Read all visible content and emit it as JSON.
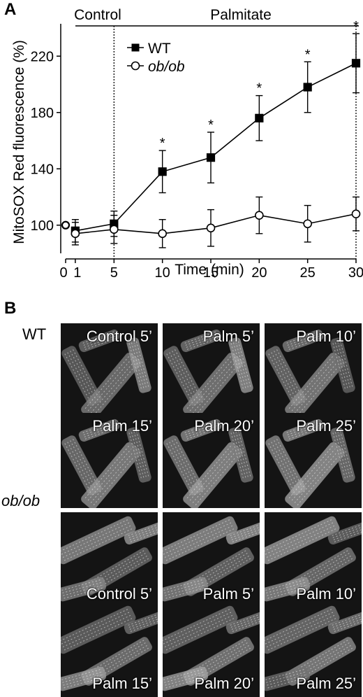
{
  "panel_a": {
    "letter": "A",
    "condition_control": "Control",
    "condition_palmitate": "Palmitate"
  },
  "panel_b": {
    "letter": "B",
    "groups": [
      {
        "label": "WT",
        "tiles": [
          [
            "Control 5’",
            "Palm 5’",
            "Palm 10’"
          ],
          [
            "Palm 15’",
            "Palm 20’",
            "Palm 25’"
          ]
        ]
      },
      {
        "label": "ob/ob",
        "tiles": [
          [
            "Control 5’",
            "Palm 5’",
            "Palm 10’"
          ],
          [
            "Palm 15’",
            "Palm 20’",
            "Palm 25’"
          ]
        ]
      }
    ]
  },
  "chart_data": {
    "type": "line",
    "xlabel": "Time (min)",
    "ylabel": "MitoSOX Red fluorescence (%)",
    "x_ticks": [
      0,
      1,
      5,
      10,
      15,
      20,
      25,
      30
    ],
    "y_ticks": [
      100,
      140,
      180,
      220
    ],
    "ylim": [
      80,
      240
    ],
    "grid": false,
    "legend_position": "top-left",
    "marker_at_zero": {
      "x": 0,
      "y": 100
    },
    "series": [
      {
        "name": "WT",
        "marker": "filled-square",
        "x": [
          1,
          5,
          10,
          15,
          20,
          25,
          30
        ],
        "y": [
          96,
          101,
          138,
          148,
          176,
          198,
          215
        ],
        "error": [
          8,
          9,
          15,
          18,
          16,
          18,
          21
        ],
        "significant": [
          false,
          false,
          true,
          true,
          true,
          true,
          true
        ]
      },
      {
        "name": "ob/ob",
        "marker": "open-circle",
        "x": [
          1,
          5,
          10,
          15,
          20,
          25,
          30
        ],
        "y": [
          94,
          97,
          94,
          98,
          107,
          101,
          108
        ],
        "error": [
          8,
          10,
          10,
          13,
          13,
          13,
          12
        ],
        "significant": [
          false,
          false,
          false,
          false,
          false,
          false,
          false
        ]
      }
    ],
    "significance_marker": "*",
    "annotations": [
      {
        "text": "Control",
        "x_from": 0,
        "x_to": 5
      },
      {
        "text": "Palmitate",
        "x_from": 5,
        "x_to": 30
      }
    ]
  }
}
